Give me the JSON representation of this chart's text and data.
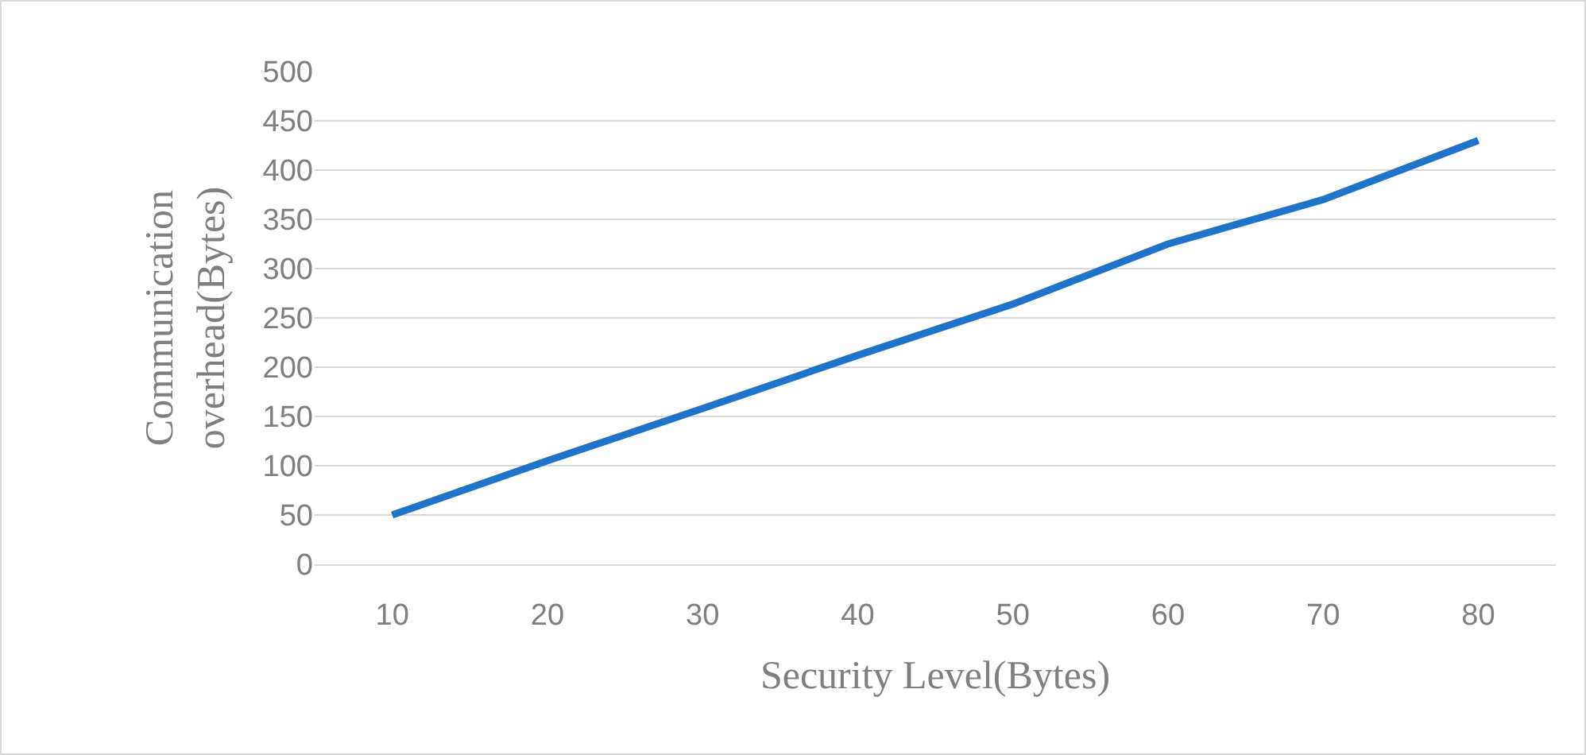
{
  "chart_data": {
    "type": "line",
    "xlabel": "Security Level(Bytes)",
    "ylabel": "Communication overhead(Bytes)",
    "categories": [
      "10",
      "20",
      "30",
      "40",
      "50",
      "60",
      "70",
      "80"
    ],
    "series": [
      {
        "color": "#1f74c9",
        "values": [
          50,
          105,
          158,
          212,
          264,
          325,
          370,
          430
        ]
      }
    ],
    "ylim": [
      0,
      500
    ],
    "yticks": [
      0,
      50,
      100,
      150,
      200,
      250,
      300,
      350,
      400,
      450,
      500
    ],
    "grid": "y",
    "marker": "none",
    "line_style": "solid"
  }
}
